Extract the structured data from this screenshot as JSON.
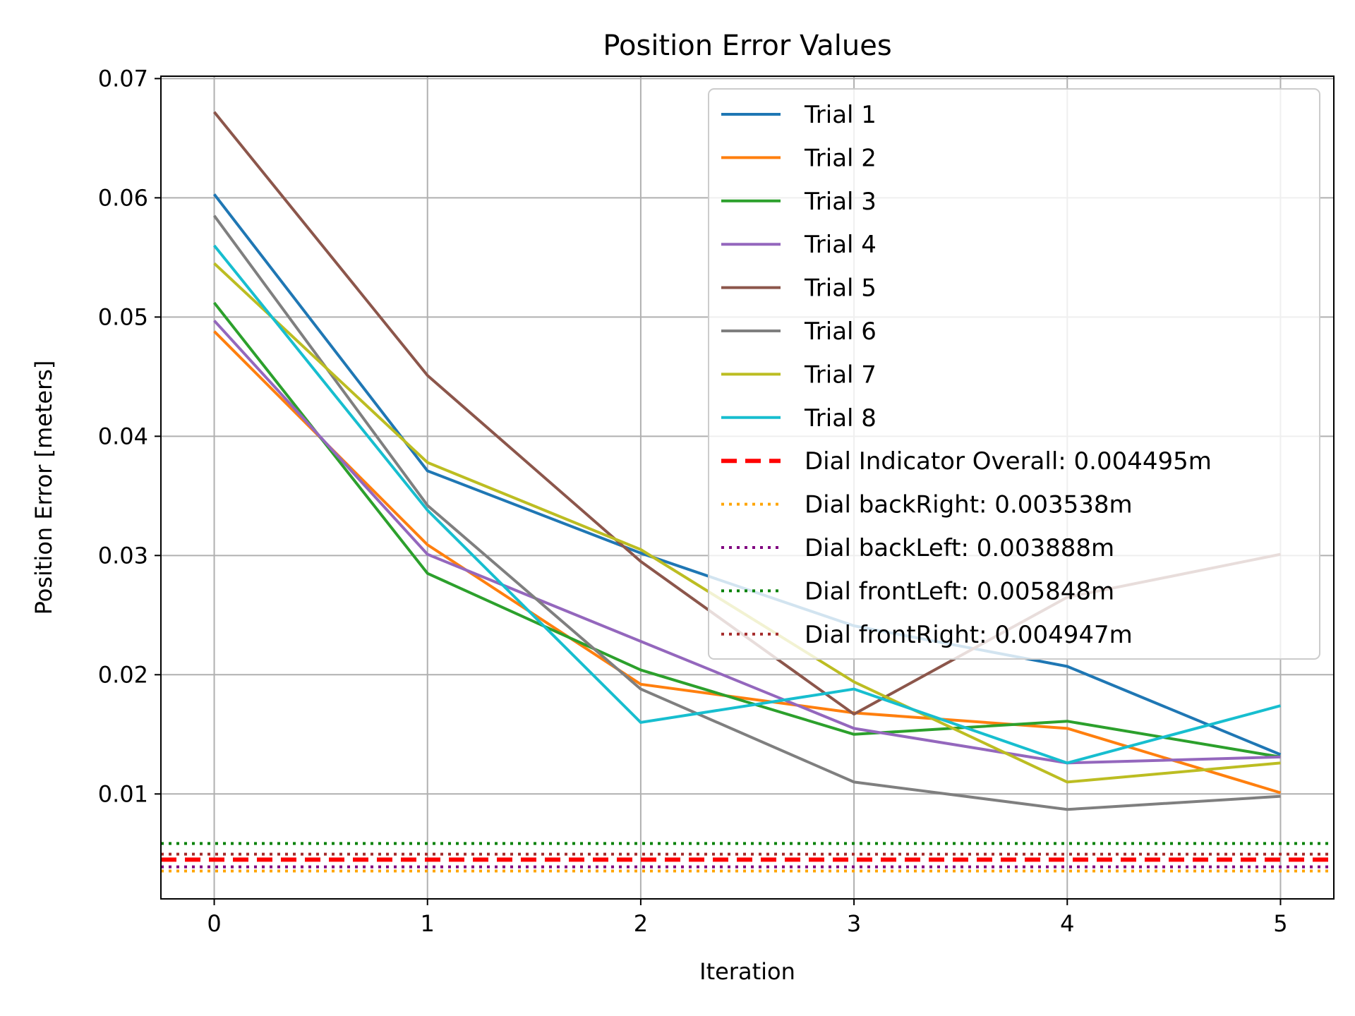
{
  "chart_data": {
    "type": "line",
    "title": "Position Error Values",
    "xlabel": "Iteration",
    "ylabel": "Position Error [meters]",
    "xlim": [
      -0.25,
      5.25
    ],
    "ylim": [
      0.0012,
      0.0702
    ],
    "grid": true,
    "legend_position": "top-right",
    "x": [
      0,
      1,
      2,
      3,
      4,
      5
    ],
    "x_ticks": [
      0,
      1,
      2,
      3,
      4,
      5
    ],
    "x_tick_labels": [
      "0",
      "1",
      "2",
      "3",
      "4",
      "5"
    ],
    "y_ticks": [
      0.01,
      0.02,
      0.03,
      0.04,
      0.05,
      0.06,
      0.07
    ],
    "y_tick_labels": [
      "0.01",
      "0.02",
      "0.03",
      "0.04",
      "0.05",
      "0.06",
      "0.07"
    ],
    "series": [
      {
        "name": "Trial 1",
        "color": "#1f77b4",
        "style": "solid",
        "values": [
          0.0603,
          0.0371,
          0.0302,
          0.0241,
          0.0207,
          0.0133
        ]
      },
      {
        "name": "Trial 2",
        "color": "#ff7f0e",
        "style": "solid",
        "values": [
          0.0488,
          0.0309,
          0.0192,
          0.0168,
          0.0155,
          0.0101
        ]
      },
      {
        "name": "Trial 3",
        "color": "#2ca02c",
        "style": "solid",
        "values": [
          0.0512,
          0.0285,
          0.0204,
          0.015,
          0.0161,
          0.0131
        ]
      },
      {
        "name": "Trial 4",
        "color": "#9467bd",
        "style": "solid",
        "values": [
          0.0497,
          0.0301,
          0.0228,
          0.0155,
          0.0126,
          0.0131
        ]
      },
      {
        "name": "Trial 5",
        "color": "#8c564b",
        "style": "solid",
        "values": [
          0.0672,
          0.0451,
          0.0295,
          0.0167,
          0.0265,
          0.0301
        ]
      },
      {
        "name": "Trial 6",
        "color": "#7f7f7f",
        "style": "solid",
        "values": [
          0.0585,
          0.0342,
          0.0188,
          0.011,
          0.0087,
          0.0098
        ]
      },
      {
        "name": "Trial 7",
        "color": "#bcbd22",
        "style": "solid",
        "values": [
          0.0545,
          0.0378,
          0.0305,
          0.0194,
          0.011,
          0.0126
        ]
      },
      {
        "name": "Trial 8",
        "color": "#17becf",
        "style": "solid",
        "values": [
          0.056,
          0.0338,
          0.016,
          0.0188,
          0.0126,
          0.0174
        ]
      }
    ],
    "reference_lines": [
      {
        "name": "Dial Indicator Overall: 0.004495m",
        "value": 0.004495,
        "color": "#ff0000",
        "style": "dashed"
      },
      {
        "name": "Dial backRight: 0.003538m",
        "value": 0.003538,
        "color": "#ffa500",
        "style": "dotted"
      },
      {
        "name": "Dial backLeft: 0.003888m",
        "value": 0.003888,
        "color": "#800080",
        "style": "dotted"
      },
      {
        "name": "Dial frontLeft: 0.005848m",
        "value": 0.005848,
        "color": "#008000",
        "style": "dotted"
      },
      {
        "name": "Dial frontRight: 0.004947m",
        "value": 0.004947,
        "color": "#a52a2a",
        "style": "dotted"
      }
    ]
  }
}
